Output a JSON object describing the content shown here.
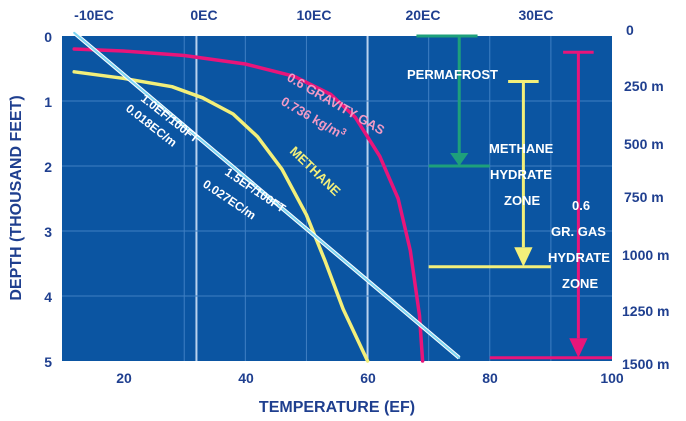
{
  "chart_data": {
    "type": "line",
    "xlabel": "TEMPERATURE (EF)",
    "ylabel": "DEPTH (THOUSAND FEET)",
    "xlim": [
      10,
      100
    ],
    "ylim": [
      0,
      5
    ],
    "x_ticks": [
      20,
      40,
      60,
      80,
      100
    ],
    "y_ticks": [
      0,
      1,
      2,
      3,
      4,
      5
    ],
    "top_axis": {
      "values": [
        -10,
        0,
        10,
        20,
        30
      ],
      "labels": [
        "-10EC",
        "0EC",
        "10EC",
        "20EC",
        "30EC"
      ]
    },
    "right_axis": {
      "values": [
        0,
        250,
        500,
        750,
        1000,
        1250,
        1500
      ],
      "labels": [
        "0",
        "250 m",
        "500 m",
        "750 m",
        "1000 m",
        "1250 m",
        "1500 m"
      ]
    },
    "grid": true,
    "series": [
      {
        "color": "#e8157a",
        "x": [
          12,
          20,
          30,
          40,
          48,
          54,
          58,
          62,
          65,
          67,
          68.5,
          69
        ],
        "y": [
          0.2,
          0.23,
          0.3,
          0.43,
          0.62,
          0.9,
          1.25,
          1.85,
          2.5,
          3.3,
          4.3,
          5
        ]
      },
      {
        "color": "#f3ef7a",
        "x": [
          12,
          20,
          28,
          33,
          38,
          42,
          46,
          50,
          53,
          56,
          58.5,
          60
        ],
        "y": [
          0.55,
          0.65,
          0.78,
          0.95,
          1.2,
          1.55,
          2.05,
          2.75,
          3.45,
          4.2,
          4.7,
          5
        ]
      },
      {
        "color": "#7fd6f2",
        "x": [
          12,
          75
        ],
        "y": [
          -0.05,
          4.95
        ]
      }
    ],
    "annotations": {
      "gravity_gas": "0.6 GRAVITY GAS",
      "density_prefix": "0.736 kg/m",
      "density_sup": "3",
      "methane": "METHANE",
      "gradient1_f": "1.0EF/100FT",
      "gradient1_c": "0.018EC/m",
      "gradient2_f": "1.5EF/100FT",
      "gradient2_c": "0.027EC/m",
      "permafrost": "PERMAFROST",
      "methane_zone": [
        "METHANE",
        "HYDRATE",
        "ZONE"
      ],
      "gas_zone": [
        "0.6",
        "GR. GAS",
        "HYDRATE",
        "ZONE"
      ]
    },
    "colors": {
      "plot_bg": "#0b55a2",
      "grid": "#3f7fc3",
      "axis_text": "#1f3f8f",
      "permafrost_line": "#1ea07b",
      "methane_zone_line": "#f3ef7a",
      "gas_zone_line": "#e8157a"
    }
  }
}
